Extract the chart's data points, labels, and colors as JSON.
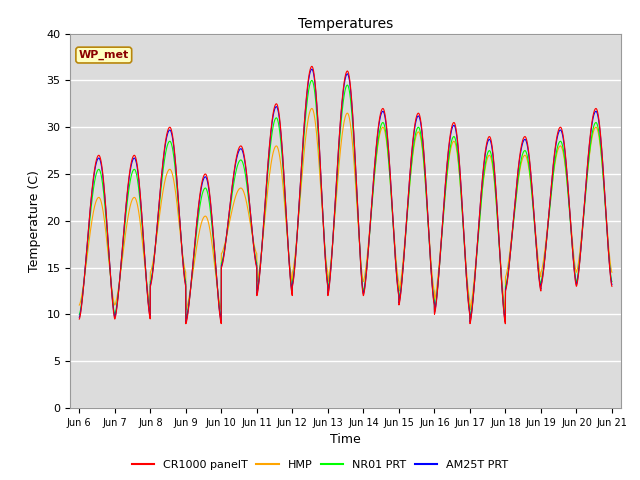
{
  "title": "Temperatures",
  "xlabel": "Time",
  "ylabel": "Temperature (C)",
  "ylim": [
    0,
    40
  ],
  "yticks": [
    0,
    5,
    10,
    15,
    20,
    25,
    30,
    35,
    40
  ],
  "xtick_labels": [
    "Jun 6",
    "Jun 7",
    "Jun 8",
    "Jun 9",
    "Jun 10",
    "Jun 11",
    "Jun 12",
    "Jun 13",
    "Jun 14",
    "Jun 15",
    "Jun 16",
    "Jun 17",
    "Jun 18",
    "Jun 19",
    "Jun 20",
    "Jun 21"
  ],
  "legend_labels": [
    "CR1000 panelT",
    "HMP",
    "NR01 PRT",
    "AM25T PRT"
  ],
  "line_colors": [
    "red",
    "orange",
    "lime",
    "blue"
  ],
  "annotation_text": "WP_met",
  "annotation_color": "#8B0000",
  "annotation_bg": "#FFFFC0",
  "background_color": "#DCDCDC",
  "grid_color": "white",
  "peaks": [
    27,
    27,
    30,
    25,
    28,
    32.5,
    36.5,
    36,
    32,
    31.5,
    30.5,
    29,
    29,
    30,
    32
  ],
  "troughs": [
    9.5,
    9.5,
    13,
    9,
    15,
    12,
    13,
    12,
    12,
    11,
    10,
    9,
    12.5,
    13,
    13
  ],
  "peak_time": 0.55,
  "figsize": [
    6.4,
    4.8
  ],
  "dpi": 100
}
